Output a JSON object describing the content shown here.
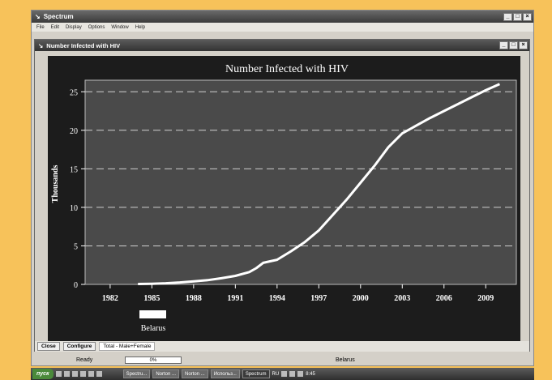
{
  "app": {
    "title": "Spectrum"
  },
  "menu": [
    "File",
    "Edit",
    "Display",
    "Options",
    "Window",
    "Help"
  ],
  "child_window": {
    "title": "Number Infected with HIV"
  },
  "chart_data": {
    "type": "line",
    "title": "Number Infected with HIV",
    "ylabel": "Thousands",
    "xlabel": "",
    "xlim": [
      1980.2,
      2011.2
    ],
    "ylim": [
      0,
      26.5
    ],
    "x_ticks": [
      1982,
      1985,
      1988,
      1991,
      1994,
      1997,
      2000,
      2003,
      2006,
      2009
    ],
    "y_ticks": [
      0,
      5,
      10,
      15,
      20,
      25
    ],
    "grid": "horizontal-dashed",
    "legend": "bottom-left",
    "series": [
      {
        "name": "Belarus",
        "color": "#ffffff",
        "x": [
          1984,
          1985,
          1986,
          1987,
          1988,
          1989,
          1990,
          1991,
          1992,
          1992.5,
          1993,
          1994,
          1995,
          1996,
          1997,
          1998,
          1999,
          2000,
          2001,
          2002,
          2003,
          2004,
          2005,
          2006,
          2007,
          2008,
          2009,
          2010
        ],
        "y": [
          0.05,
          0.08,
          0.15,
          0.25,
          0.4,
          0.55,
          0.8,
          1.1,
          1.6,
          2.1,
          2.8,
          3.2,
          4.3,
          5.5,
          7.0,
          9.0,
          11.0,
          13.2,
          15.4,
          17.8,
          19.6,
          20.6,
          21.6,
          22.5,
          23.4,
          24.3,
          25.2,
          26.0
        ]
      }
    ]
  },
  "bottom": {
    "close": "Close",
    "configure": "Configure",
    "total": "Total - Male+Female"
  },
  "status": {
    "ready": "Ready",
    "progress": "0%",
    "country": "Belarus"
  },
  "taskbar": {
    "start": "пуск",
    "tasks": [
      "Spectru...",
      "Norton ...",
      "Norton ...",
      "Использ...",
      "Spectrum"
    ],
    "lang": "RU",
    "time": "8:45"
  }
}
